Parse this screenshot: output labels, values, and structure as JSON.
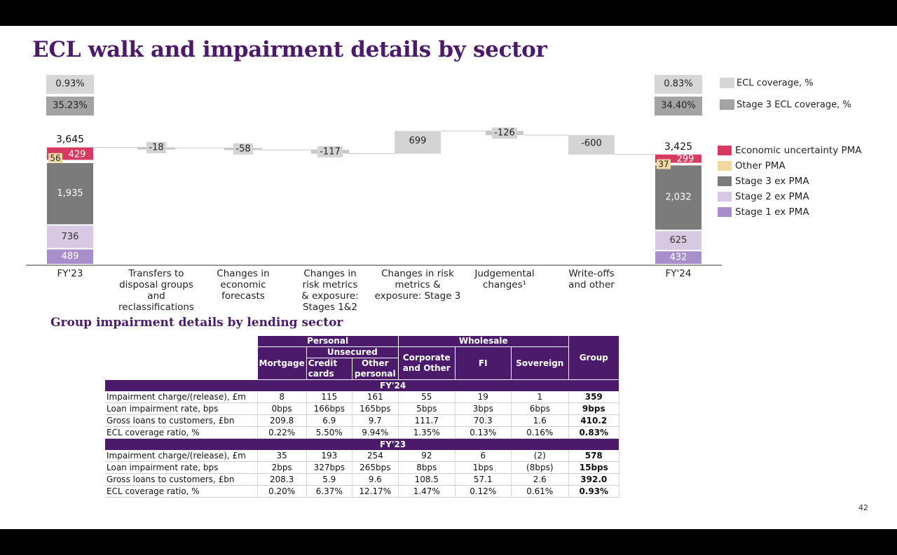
{
  "title": "ECL walk and impairment details by sector",
  "page_number": "42",
  "colors": {
    "brand_purple": "#4b1a6b",
    "ecl_coverage": "#d6d6d6",
    "stage3_coverage": "#a3a3a3",
    "economic_uncertainty_pma": "#d63a60",
    "other_pma": "#f3d9a0",
    "stage3_ex_pma": "#7b7b7b",
    "stage2_ex_pma": "#d9c8e1",
    "stage1_ex_pma": "#a88fcb",
    "walk_bar": "#d4d4d4"
  },
  "chart_data": {
    "type": "waterfall",
    "title": "ECL walk",
    "categories": [
      "FY'23",
      "Transfers to disposal groups and reclassifications",
      "Changes in economic forecasts",
      "Changes in risk metrics & exposure: Stages 1&2",
      "Changes in risk metrics & exposure: Stage 3",
      "Judgemental changes¹",
      "Write-offs and other",
      "FY'24"
    ],
    "category_lines": [
      [
        "FY'23"
      ],
      [
        "Transfers to",
        "disposal groups",
        "and",
        "reclassifications"
      ],
      [
        "Changes in",
        "economic",
        "forecasts"
      ],
      [
        "Changes in",
        "risk metrics",
        "& exposure:",
        "Stages 1&2"
      ],
      [
        "Changes in risk",
        "metrics &",
        "exposure: Stage 3"
      ],
      [
        "Judgemental",
        "changes¹"
      ],
      [
        "Write-offs",
        "and other"
      ],
      [
        "FY'24"
      ]
    ],
    "opening": {
      "label": "FY'23",
      "total": 3645,
      "total_label": "3,645",
      "ecl_coverage": "0.93%",
      "stage3_ecl_coverage": "35.23%",
      "stages": {
        "stage1_ex_pma": {
          "value": 489,
          "label": "489"
        },
        "stage2_ex_pma": {
          "value": 736,
          "label": "736"
        },
        "stage3_ex_pma": {
          "value": 1935,
          "label": "1,935"
        },
        "other_pma": {
          "value": 56,
          "label": "56"
        },
        "economic_uncertainty_pma": {
          "value": 429,
          "label": "429"
        }
      }
    },
    "movements": [
      {
        "value": -18,
        "label": "-18"
      },
      {
        "value": -58,
        "label": "-58"
      },
      {
        "value": -117,
        "label": "-117"
      },
      {
        "value": 699,
        "label": "699"
      },
      {
        "value": -126,
        "label": "-126"
      },
      {
        "value": -600,
        "label": "-600"
      }
    ],
    "closing": {
      "label": "FY'24",
      "total": 3425,
      "total_label": "3,425",
      "ecl_coverage": "0.83%",
      "stage3_ecl_coverage": "34.40%",
      "stages": {
        "stage1_ex_pma": {
          "value": 432,
          "label": "432"
        },
        "stage2_ex_pma": {
          "value": 625,
          "label": "625"
        },
        "stage3_ex_pma": {
          "value": 2032,
          "label": "2,032"
        },
        "other_pma": {
          "value": 37,
          "label": "37"
        },
        "economic_uncertainty_pma": {
          "value": 299,
          "label": "299"
        }
      }
    },
    "legend": {
      "placement": "right",
      "coverage_items": [
        {
          "key": "ecl_coverage",
          "label": "ECL coverage, %"
        },
        {
          "key": "stage3_coverage",
          "label": "Stage 3 ECL coverage, %"
        }
      ],
      "stage_items": [
        {
          "key": "economic_uncertainty_pma",
          "label": "Economic uncertainty PMA"
        },
        {
          "key": "other_pma",
          "label": "Other PMA"
        },
        {
          "key": "stage3_ex_pma",
          "label": "Stage 3 ex PMA"
        },
        {
          "key": "stage2_ex_pma",
          "label": "Stage 2 ex PMA"
        },
        {
          "key": "stage1_ex_pma",
          "label": "Stage 1 ex PMA"
        }
      ]
    }
  },
  "table": {
    "subtitle": "Group impairment details by lending sector",
    "groups": {
      "personal": "Personal",
      "unsecured": "Unsecured",
      "wholesale": "Wholesale",
      "group": "Group"
    },
    "columns": {
      "mortgage": "Mortgage",
      "credit_cards_1": "Credit",
      "credit_cards_2": "cards",
      "other_personal_1": "Other",
      "other_personal_2": "personal",
      "corporate_1": "Corporate",
      "corporate_2": "and Other",
      "fi": "FI",
      "sovereign": "Sovereign"
    },
    "sections": [
      {
        "label": "FY'24",
        "rows": [
          {
            "label": "Impairment charge/(release), £m",
            "values": [
              "8",
              "115",
              "161",
              "55",
              "19",
              "1",
              "359"
            ]
          },
          {
            "label": "Loan impairment rate, bps",
            "values": [
              "0bps",
              "166bps",
              "165bps",
              "5bps",
              "3bps",
              "6bps",
              "9bps"
            ]
          },
          {
            "label": "Gross loans to customers, £bn",
            "values": [
              "209.8",
              "6.9",
              "9.7",
              "111.7",
              "70.3",
              "1.6",
              "410.2"
            ]
          },
          {
            "label": "ECL coverage ratio, %",
            "values": [
              "0.22%",
              "5.50%",
              "9.94%",
              "1.35%",
              "0.13%",
              "0.16%",
              "0.83%"
            ]
          }
        ]
      },
      {
        "label": "FY'23",
        "rows": [
          {
            "label": "Impairment charge/(release), £m",
            "values": [
              "35",
              "193",
              "254",
              "92",
              "6",
              "(2)",
              "578"
            ]
          },
          {
            "label": "Loan impairment rate, bps",
            "values": [
              "2bps",
              "327bps",
              "265bps",
              "8bps",
              "1bps",
              "(8bps)",
              "15bps"
            ]
          },
          {
            "label": "Gross loans to customers, £bn",
            "values": [
              "208.3",
              "5.9",
              "9.6",
              "108.5",
              "57.1",
              "2.6",
              "392.0"
            ]
          },
          {
            "label": "ECL coverage ratio, %",
            "values": [
              "0.20%",
              "6.37%",
              "12.17%",
              "1.47%",
              "0.12%",
              "0.61%",
              "0.93%"
            ]
          }
        ]
      }
    ]
  }
}
